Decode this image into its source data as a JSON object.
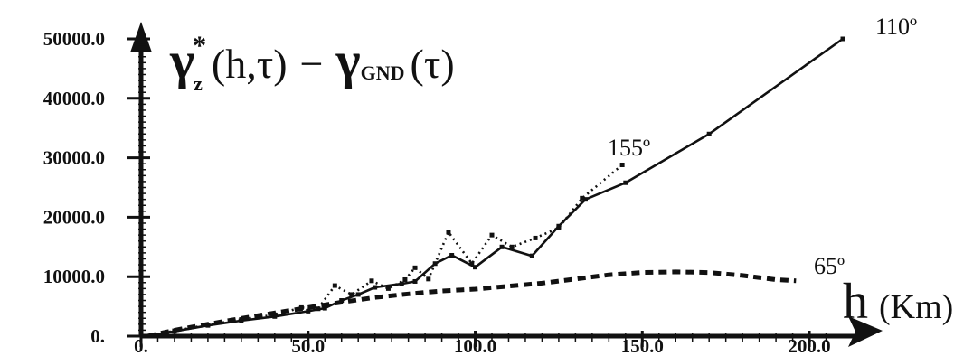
{
  "chart_data": {
    "type": "line",
    "title_parts": {
      "symbol": "γ",
      "star": "*",
      "sub_z": "z",
      "args": "(h,τ)",
      "minus": "−",
      "symbol2": "γ",
      "sub_gnd": "GND",
      "args2": "(τ)"
    },
    "xlabel": "h",
    "xunit": "(Km)",
    "xlim": [
      0,
      215
    ],
    "ylim": [
      0,
      52000
    ],
    "x_ticks": [
      0,
      50,
      100,
      150,
      200
    ],
    "x_tick_labels": [
      "0.",
      "50.0",
      "100.0",
      "150.0",
      "200.0"
    ],
    "y_ticks": [
      0,
      10000,
      20000,
      30000,
      40000,
      50000
    ],
    "y_tick_labels": [
      "0.",
      "10000.0",
      "20000.0",
      "30000.0",
      "40000.0",
      "50000.0"
    ],
    "series": [
      {
        "name": "110º",
        "style": "solid",
        "points": [
          [
            2,
            0
          ],
          [
            10,
            800
          ],
          [
            20,
            1800
          ],
          [
            30,
            2600
          ],
          [
            40,
            3300
          ],
          [
            50,
            4200
          ],
          [
            55,
            4700
          ],
          [
            60,
            6000
          ],
          [
            65,
            7000
          ],
          [
            70,
            8200
          ],
          [
            78,
            8800
          ],
          [
            82,
            9200
          ],
          [
            88,
            12200
          ],
          [
            93,
            13600
          ],
          [
            100,
            11600
          ],
          [
            108,
            15000
          ],
          [
            117,
            13500
          ],
          [
            125,
            18500
          ],
          [
            133,
            23000
          ],
          [
            145,
            25800
          ],
          [
            170,
            34000
          ],
          [
            210,
            50000
          ]
        ]
      },
      {
        "name": "155º",
        "style": "dotted",
        "points": [
          [
            2,
            0
          ],
          [
            10,
            900
          ],
          [
            20,
            1900
          ],
          [
            30,
            2800
          ],
          [
            40,
            3600
          ],
          [
            48,
            4800
          ],
          [
            53,
            4600
          ],
          [
            58,
            8500
          ],
          [
            63,
            7000
          ],
          [
            69,
            9300
          ],
          [
            74,
            8000
          ],
          [
            79,
            9500
          ],
          [
            82,
            11500
          ],
          [
            86,
            9600
          ],
          [
            92,
            17500
          ],
          [
            99,
            12200
          ],
          [
            105,
            17000
          ],
          [
            111,
            15000
          ],
          [
            118,
            16500
          ],
          [
            125,
            18200
          ],
          [
            132,
            23200
          ],
          [
            144,
            28800
          ]
        ]
      },
      {
        "name": "65º",
        "style": "dashed",
        "points": [
          [
            2,
            0
          ],
          [
            10,
            1000
          ],
          [
            20,
            2000
          ],
          [
            30,
            3000
          ],
          [
            40,
            3900
          ],
          [
            50,
            4800
          ],
          [
            60,
            5700
          ],
          [
            70,
            6500
          ],
          [
            80,
            7100
          ],
          [
            90,
            7600
          ],
          [
            100,
            7900
          ],
          [
            110,
            8400
          ],
          [
            120,
            8900
          ],
          [
            130,
            9600
          ],
          [
            140,
            10300
          ],
          [
            150,
            10700
          ],
          [
            160,
            10800
          ],
          [
            170,
            10700
          ],
          [
            180,
            10200
          ],
          [
            190,
            9500
          ],
          [
            196,
            9300
          ]
        ]
      }
    ]
  }
}
